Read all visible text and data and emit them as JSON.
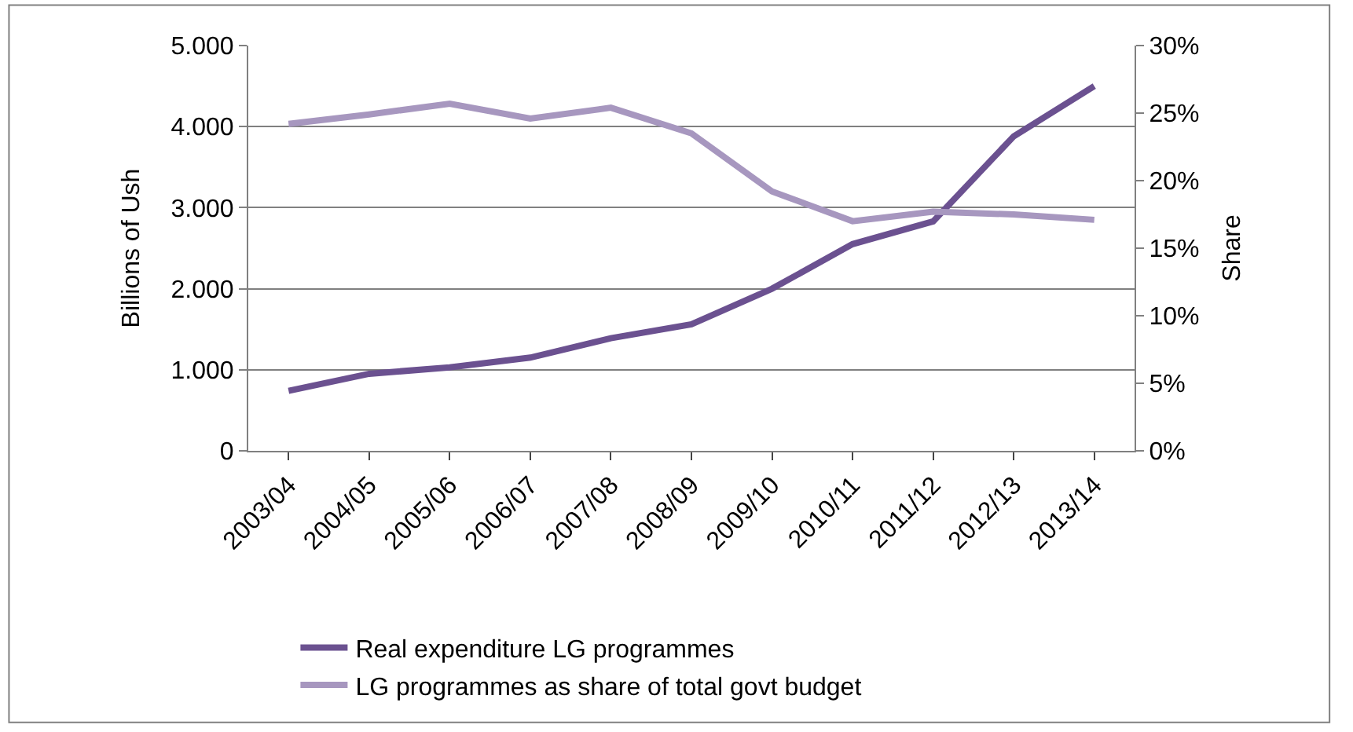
{
  "chart_data": {
    "type": "line",
    "ylabel": "Billions of Ush",
    "y2label": "Share",
    "categories": [
      "2003/04",
      "2004/05",
      "2005/06",
      "2006/07",
      "2007/08",
      "2008/09",
      "2009/10",
      "2010/11",
      "2011/12",
      "2012/13",
      "2013/14"
    ],
    "series": [
      {
        "name": "Real expenditure LG programmes",
        "color": "#6b5190",
        "values": [
          740,
          950,
          1030,
          1150,
          1390,
          1560,
          2000,
          2550,
          2830,
          3880,
          4500
        ]
      },
      {
        "name": "LG programmes as share of total govt budget",
        "color": "#a797bf",
        "axis": "y2",
        "values": [
          24.2,
          24.9,
          25.7,
          24.6,
          25.4,
          23.5,
          19.2,
          17.0,
          17.7,
          17.5,
          17.1
        ]
      }
    ],
    "ylim": [
      0,
      5000
    ],
    "yticks": [
      0,
      {
        "value": 1000,
        "label": "1.000"
      },
      {
        "value": 2000,
        "label": "2.000"
      },
      {
        "value": 3000,
        "label": "3.000"
      },
      {
        "value": 4000,
        "label": "4.000"
      },
      {
        "value": 5000,
        "label": "5.000"
      }
    ],
    "y2lim": [
      0,
      30
    ],
    "y2ticks": [
      {
        "value": 0,
        "label": "0%"
      },
      {
        "value": 5,
        "label": "5%"
      },
      {
        "value": 10,
        "label": "10%"
      },
      {
        "value": 15,
        "label": "15%"
      },
      {
        "value": 20,
        "label": "20%"
      },
      {
        "value": 25,
        "label": "25%"
      },
      {
        "value": 30,
        "label": "30%"
      }
    ],
    "grid": "y",
    "legend": "bottom",
    "marker": "none",
    "line_style": "solid"
  }
}
